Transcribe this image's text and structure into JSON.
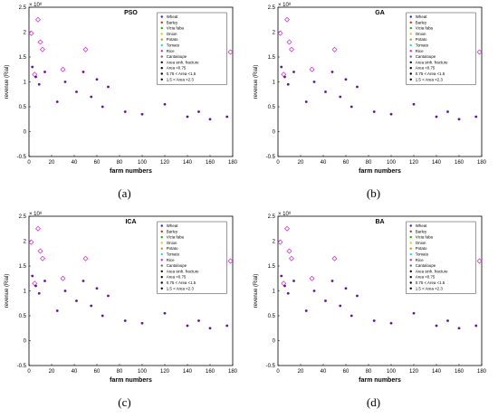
{
  "chart_data": [
    {
      "type": "scatter",
      "caption": "(a)",
      "title": "PSO",
      "xlabel": "farm numbers",
      "ylabel": "revenue (Rial)",
      "exponent_label": "× 10⁸",
      "xlim": [
        0,
        180
      ],
      "ylim": [
        -0.5,
        2.5
      ],
      "xticks": [
        0,
        20,
        40,
        60,
        80,
        100,
        120,
        140,
        160,
        180
      ],
      "yticks": [
        -0.5,
        0,
        0.5,
        1,
        1.5,
        2,
        2.5
      ],
      "ytick_labels": [
        "-0.5",
        "0",
        "0.5",
        "1",
        "1.5",
        "2",
        "2.5"
      ],
      "legend": [
        "Wheat",
        "Barley",
        "Vicia faba",
        "Onion",
        "Potato",
        "Tomato",
        "Rice",
        "Cantaloupe",
        "Area sinh. fracture",
        "Area <0.75",
        "0.75 < Area <1.5",
        "1.5 < Area <2.3"
      ],
      "legend_colors": [
        "#2222cc",
        "#cc2222",
        "#22aa22",
        "#cccc22",
        "#dd8822",
        "#22dddd",
        "#cc22cc",
        "#666666",
        "#000000",
        "#000000",
        "#000000",
        "#000000"
      ],
      "legend_position": "top-right",
      "series": [
        {
          "name": "Cantaloupe",
          "x": [
            2,
            5,
            8,
            10,
            12,
            30,
            50,
            178
          ],
          "y": [
            1.98,
            1.15,
            2.25,
            1.8,
            1.65,
            1.25,
            1.65,
            1.6
          ]
        },
        {
          "name": "Rice",
          "x": [
            3,
            6,
            9,
            14,
            25,
            32,
            42,
            48,
            55,
            60,
            65,
            70,
            85,
            100,
            120,
            140,
            150,
            160,
            175
          ],
          "y": [
            1.3,
            1.1,
            0.95,
            1.2,
            0.6,
            1.0,
            0.8,
            1.2,
            0.7,
            1.05,
            0.5,
            0.9,
            0.4,
            0.35,
            0.55,
            0.3,
            0.4,
            0.25,
            0.3
          ]
        }
      ]
    },
    {
      "type": "scatter",
      "caption": "(b)",
      "title": "GA",
      "xlabel": "farm numbers",
      "ylabel": "revenue (Rial)",
      "exponent_label": "× 10⁸",
      "xlim": [
        0,
        180
      ],
      "ylim": [
        -0.5,
        2.5
      ],
      "xticks": [
        0,
        20,
        40,
        60,
        80,
        100,
        120,
        140,
        160,
        180
      ],
      "yticks": [
        -0.5,
        0,
        0.5,
        1,
        1.5,
        2,
        2.5
      ],
      "ytick_labels": [
        "-0.5",
        "0",
        "0.5",
        "1",
        "1.5",
        "2",
        "2.5"
      ],
      "legend": [
        "Wheat",
        "Barley",
        "Vicia faba",
        "Onion",
        "Potato",
        "Tomato",
        "Rice",
        "Cantaloupe",
        "Area sinh. fracture",
        "Area <0.75",
        "0.75 < Area <1.5",
        "1.5 < Area <2.3"
      ],
      "legend_colors": [
        "#2222cc",
        "#cc2222",
        "#22aa22",
        "#cccc22",
        "#dd8822",
        "#22dddd",
        "#cc22cc",
        "#666666",
        "#000000",
        "#000000",
        "#000000",
        "#000000"
      ],
      "legend_position": "top-right",
      "series": [
        {
          "name": "Cantaloupe",
          "x": [
            2,
            5,
            8,
            10,
            12,
            30,
            50,
            178
          ],
          "y": [
            1.98,
            1.15,
            2.25,
            1.8,
            1.65,
            1.25,
            1.65,
            1.6
          ]
        },
        {
          "name": "Rice",
          "x": [
            3,
            6,
            9,
            14,
            25,
            32,
            42,
            48,
            55,
            60,
            65,
            70,
            85,
            100,
            120,
            140,
            150,
            160,
            175
          ],
          "y": [
            1.3,
            1.1,
            0.95,
            1.2,
            0.6,
            1.0,
            0.8,
            1.2,
            0.7,
            1.05,
            0.5,
            0.9,
            0.4,
            0.35,
            0.55,
            0.3,
            0.4,
            0.25,
            0.3
          ]
        }
      ]
    },
    {
      "type": "scatter",
      "caption": "(c)",
      "title": "ICA",
      "xlabel": "farm numbers",
      "ylabel": "revenue (Rial)",
      "exponent_label": "× 10⁸",
      "xlim": [
        0,
        180
      ],
      "ylim": [
        -0.5,
        2.5
      ],
      "xticks": [
        0,
        20,
        40,
        60,
        80,
        100,
        120,
        140,
        160,
        180
      ],
      "yticks": [
        -0.5,
        0,
        0.5,
        1,
        1.5,
        2,
        2.5
      ],
      "ytick_labels": [
        "-0.5",
        "0",
        "0.5",
        "1",
        "1.5",
        "2",
        "2.5"
      ],
      "legend": [
        "Wheat",
        "Barley",
        "Vicia faba",
        "Onion",
        "Potato",
        "Tomato",
        "Rice",
        "Cantaloupe",
        "Area sinh. fracture",
        "Area <0.75",
        "0.75 < Area <1.5",
        "1.5 < Area <2.3"
      ],
      "legend_colors": [
        "#2222cc",
        "#cc2222",
        "#22aa22",
        "#cccc22",
        "#dd8822",
        "#22dddd",
        "#cc22cc",
        "#666666",
        "#000000",
        "#000000",
        "#000000",
        "#000000"
      ],
      "legend_position": "top-right",
      "series": [
        {
          "name": "Cantaloupe",
          "x": [
            2,
            5,
            8,
            10,
            12,
            30,
            50,
            178
          ],
          "y": [
            1.98,
            1.15,
            2.25,
            1.8,
            1.65,
            1.25,
            1.65,
            1.6
          ]
        },
        {
          "name": "Rice",
          "x": [
            3,
            6,
            9,
            14,
            25,
            32,
            42,
            48,
            55,
            60,
            65,
            70,
            85,
            100,
            120,
            140,
            150,
            160,
            175
          ],
          "y": [
            1.3,
            1.1,
            0.95,
            1.2,
            0.6,
            1.0,
            0.8,
            1.2,
            0.7,
            1.05,
            0.5,
            0.9,
            0.4,
            0.35,
            0.55,
            0.3,
            0.4,
            0.25,
            0.3
          ]
        }
      ]
    },
    {
      "type": "scatter",
      "caption": "(d)",
      "title": "BA",
      "xlabel": "farm numbers",
      "ylabel": "revenue (Rial)",
      "exponent_label": "× 10⁸",
      "xlim": [
        0,
        180
      ],
      "ylim": [
        -0.5,
        2.5
      ],
      "xticks": [
        0,
        20,
        40,
        60,
        80,
        100,
        120,
        140,
        160,
        180
      ],
      "yticks": [
        -0.5,
        0,
        0.5,
        1,
        1.5,
        2,
        2.5
      ],
      "ytick_labels": [
        "-0.5",
        "0",
        "0.5",
        "1",
        "1.5",
        "2",
        "2.5"
      ],
      "legend": [
        "Wheat",
        "Barley",
        "Vicia faba",
        "Onion",
        "Potato",
        "Tomato",
        "Rice",
        "Cantaloupe",
        "Area sinh. fracture",
        "Area <0.75",
        "0.75 < Area <1.5",
        "1.5 < Area <2.3"
      ],
      "legend_colors": [
        "#2222cc",
        "#cc2222",
        "#22aa22",
        "#cccc22",
        "#dd8822",
        "#22dddd",
        "#cc22cc",
        "#666666",
        "#000000",
        "#000000",
        "#000000",
        "#000000"
      ],
      "legend_position": "top-right",
      "series": [
        {
          "name": "Cantaloupe",
          "x": [
            2,
            5,
            8,
            10,
            12,
            30,
            50,
            178
          ],
          "y": [
            1.98,
            1.15,
            2.25,
            1.8,
            1.65,
            1.25,
            1.65,
            1.6
          ]
        },
        {
          "name": "Rice",
          "x": [
            3,
            6,
            9,
            14,
            25,
            32,
            42,
            48,
            55,
            60,
            65,
            70,
            85,
            100,
            120,
            140,
            150,
            160,
            175
          ],
          "y": [
            1.3,
            1.1,
            0.95,
            1.2,
            0.6,
            1.0,
            0.8,
            1.2,
            0.7,
            1.05,
            0.5,
            0.9,
            0.4,
            0.35,
            0.55,
            0.3,
            0.4,
            0.25,
            0.3
          ]
        }
      ]
    }
  ]
}
